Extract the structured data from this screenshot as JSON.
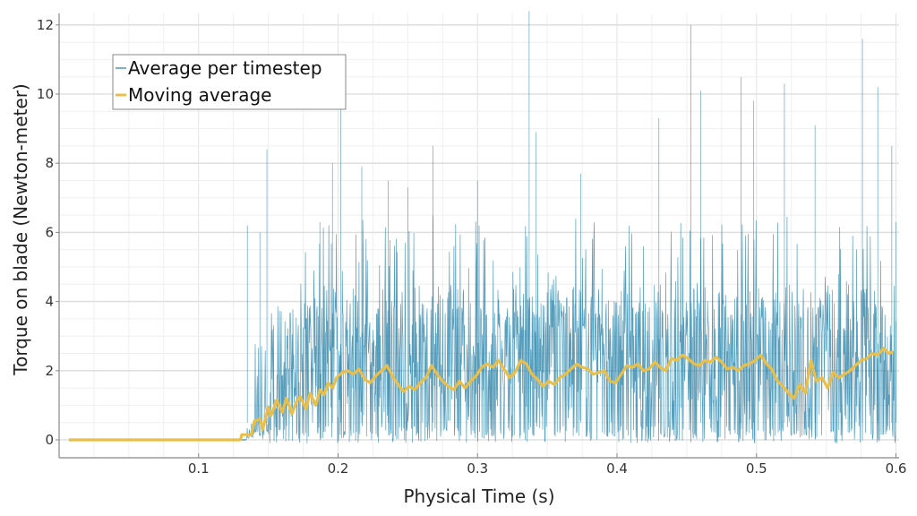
{
  "chart_data": {
    "type": "line",
    "title": "",
    "xlabel": "Physical Time (s)",
    "ylabel": "Torque on blade (Newton-meter)",
    "xlim": [
      0.0,
      0.602
    ],
    "ylim": [
      -0.5,
      12.4
    ],
    "grid": true,
    "legend_position": "top-left",
    "x_ticks": [
      0.1,
      0.2,
      0.3,
      0.4,
      0.5,
      0.6
    ],
    "x_tick_labels": [
      "0.1",
      "0.2",
      "0.3",
      "0.4",
      "0.5",
      "0.6"
    ],
    "y_ticks": [
      0,
      2,
      4,
      6,
      8,
      10,
      12
    ],
    "y_tick_labels": [
      "0",
      "2",
      "4",
      "6",
      "8",
      "10",
      "12"
    ],
    "colors": {
      "per_timestep": "#1f7ea6",
      "moving_average": "#e8bf4a",
      "grid": "#e6e6e6",
      "axis": "#888888"
    },
    "series": [
      {
        "name": "Average per timestep",
        "style": "thin-line",
        "start_x": 0.007,
        "onset_x": 0.134,
        "end_x": 0.6,
        "baseline_before_onset": 0,
        "typical_range": [
          0,
          5
        ],
        "notable_peaks": [
          {
            "x": 0.135,
            "y": 6.2
          },
          {
            "x": 0.144,
            "y": 6.0
          },
          {
            "x": 0.149,
            "y": 8.4
          },
          {
            "x": 0.187,
            "y": 6.3
          },
          {
            "x": 0.196,
            "y": 8.0
          },
          {
            "x": 0.202,
            "y": 9.7
          },
          {
            "x": 0.217,
            "y": 7.9
          },
          {
            "x": 0.236,
            "y": 7.5
          },
          {
            "x": 0.25,
            "y": 7.3
          },
          {
            "x": 0.268,
            "y": 8.5
          },
          {
            "x": 0.3,
            "y": 7.5
          },
          {
            "x": 0.337,
            "y": 12.4
          },
          {
            "x": 0.342,
            "y": 8.9
          },
          {
            "x": 0.374,
            "y": 7.7
          },
          {
            "x": 0.43,
            "y": 9.3
          },
          {
            "x": 0.453,
            "y": 12.0
          },
          {
            "x": 0.46,
            "y": 10.1
          },
          {
            "x": 0.489,
            "y": 10.5
          },
          {
            "x": 0.498,
            "y": 9.8
          },
          {
            "x": 0.52,
            "y": 10.3
          },
          {
            "x": 0.542,
            "y": 9.1
          },
          {
            "x": 0.576,
            "y": 11.6
          },
          {
            "x": 0.587,
            "y": 10.2
          },
          {
            "x": 0.597,
            "y": 8.5
          },
          {
            "x": 0.6,
            "y": 6.3
          }
        ]
      },
      {
        "name": "Moving average",
        "style": "thick-line",
        "x": [
          0.007,
          0.13,
          0.131,
          0.138,
          0.14,
          0.144,
          0.146,
          0.15,
          0.152,
          0.156,
          0.16,
          0.163,
          0.167,
          0.17,
          0.173,
          0.177,
          0.18,
          0.184,
          0.187,
          0.19,
          0.193,
          0.196,
          0.199,
          0.203,
          0.207,
          0.211,
          0.215,
          0.219,
          0.223,
          0.227,
          0.231,
          0.235,
          0.239,
          0.243,
          0.247,
          0.251,
          0.255,
          0.259,
          0.263,
          0.267,
          0.271,
          0.275,
          0.279,
          0.283,
          0.287,
          0.291,
          0.295,
          0.299,
          0.303,
          0.307,
          0.311,
          0.315,
          0.319,
          0.323,
          0.327,
          0.331,
          0.335,
          0.339,
          0.343,
          0.347,
          0.351,
          0.355,
          0.359,
          0.363,
          0.367,
          0.371,
          0.375,
          0.379,
          0.383,
          0.387,
          0.391,
          0.395,
          0.399,
          0.403,
          0.407,
          0.411,
          0.415,
          0.419,
          0.423,
          0.427,
          0.431,
          0.435,
          0.439,
          0.443,
          0.447,
          0.451,
          0.455,
          0.459,
          0.463,
          0.467,
          0.471,
          0.475,
          0.479,
          0.483,
          0.487,
          0.491,
          0.495,
          0.499,
          0.503,
          0.507,
          0.511,
          0.515,
          0.519,
          0.523,
          0.527,
          0.531,
          0.535,
          0.539,
          0.543,
          0.547,
          0.551,
          0.555,
          0.559,
          0.563,
          0.567,
          0.571,
          0.575,
          0.579,
          0.583,
          0.587,
          0.591,
          0.595,
          0.598
        ],
        "y": [
          0.0,
          0.0,
          0.15,
          0.15,
          0.55,
          0.6,
          0.3,
          0.95,
          0.7,
          1.15,
          0.8,
          1.2,
          0.75,
          1.1,
          1.25,
          0.9,
          1.35,
          1.0,
          1.45,
          1.3,
          1.65,
          1.5,
          1.8,
          1.95,
          2.0,
          1.9,
          2.05,
          1.75,
          1.65,
          1.85,
          2.0,
          2.15,
          1.85,
          1.6,
          1.4,
          1.55,
          1.45,
          1.65,
          1.8,
          2.15,
          1.9,
          1.7,
          1.55,
          1.45,
          1.7,
          1.5,
          1.7,
          1.85,
          2.1,
          2.2,
          2.1,
          2.3,
          2.05,
          1.8,
          1.95,
          2.3,
          2.2,
          1.9,
          1.75,
          1.55,
          1.7,
          1.6,
          1.8,
          1.9,
          2.05,
          2.2,
          2.1,
          2.05,
          1.9,
          1.95,
          2.0,
          1.7,
          1.65,
          1.9,
          2.15,
          2.1,
          2.2,
          2.0,
          2.05,
          2.25,
          2.1,
          2.0,
          2.35,
          2.3,
          2.45,
          2.35,
          2.2,
          2.15,
          2.3,
          2.25,
          2.4,
          2.25,
          2.05,
          2.1,
          2.0,
          2.15,
          2.2,
          2.3,
          2.45,
          2.2,
          2.05,
          1.7,
          1.55,
          1.35,
          1.2,
          1.6,
          1.35,
          2.3,
          1.7,
          1.8,
          1.5,
          1.95,
          1.8,
          1.9,
          2.0,
          2.15,
          2.3,
          2.35,
          2.5,
          2.45,
          2.65,
          2.5,
          2.55
        ]
      }
    ]
  }
}
